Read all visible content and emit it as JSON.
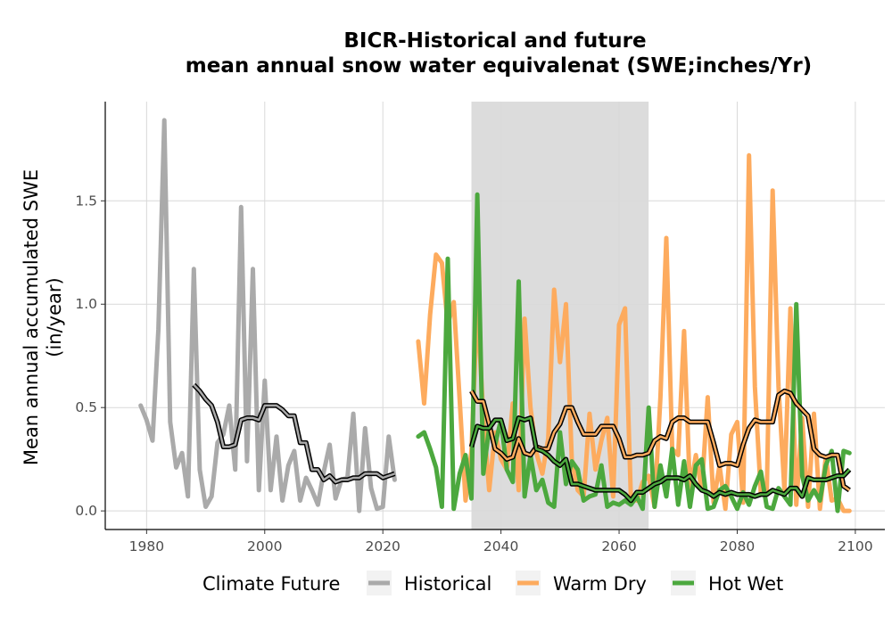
{
  "chart_data": {
    "type": "line",
    "title": "BICR-Historical and future",
    "subtitle": "mean annual snow water equivalenat (SWE;inches/Yr)",
    "xlabel": "",
    "ylabel_line1": "Mean annual accumulated SWE",
    "ylabel_line2": "(in/year)",
    "xlim": [
      1973,
      2105
    ],
    "ylim": [
      -0.09,
      1.98
    ],
    "x_ticks": [
      1980,
      2000,
      2020,
      2040,
      2060,
      2080,
      2100
    ],
    "y_ticks": [
      0.0,
      0.5,
      1.0,
      1.5
    ],
    "y_tick_labels": [
      "0.0",
      "0.5",
      "1.0",
      "1.5"
    ],
    "grid": true,
    "shaded_period": [
      2035,
      2065
    ],
    "shade_color": "#dcdcdc",
    "legend": {
      "position": "bottom",
      "title": "Climate Future",
      "entries": [
        {
          "label": "Historical",
          "color": "#aaaaaa"
        },
        {
          "label": "Warm Dry",
          "color": "#fdab5e"
        },
        {
          "label": "Hot Wet",
          "color": "#4ca83e"
        }
      ]
    },
    "series": [
      {
        "name": "Historical",
        "color": "#aaaaaa",
        "x": [
          1979,
          1980,
          1981,
          1982,
          1983,
          1984,
          1985,
          1986,
          1987,
          1988,
          1989,
          1990,
          1991,
          1992,
          1993,
          1994,
          1995,
          1996,
          1997,
          1998,
          1999,
          2000,
          2001,
          2002,
          2003,
          2004,
          2005,
          2006,
          2007,
          2008,
          2009,
          2010,
          2011,
          2012,
          2013,
          2014,
          2015,
          2016,
          2017,
          2018,
          2019,
          2020,
          2021,
          2022
        ],
        "values": [
          0.51,
          0.44,
          0.34,
          0.88,
          1.89,
          0.43,
          0.21,
          0.28,
          0.07,
          1.17,
          0.2,
          0.02,
          0.07,
          0.33,
          0.37,
          0.51,
          0.2,
          1.47,
          0.24,
          1.17,
          0.1,
          0.63,
          0.1,
          0.36,
          0.05,
          0.22,
          0.29,
          0.05,
          0.16,
          0.1,
          0.03,
          0.19,
          0.32,
          0.06,
          0.15,
          0.16,
          0.47,
          0.0,
          0.4,
          0.11,
          0.01,
          0.02,
          0.36,
          0.15
        ],
        "moving_average": {
          "color": "#000000",
          "x": [
            1988,
            1989,
            1990,
            1991,
            1992,
            1993,
            1994,
            1995,
            1996,
            1997,
            1998,
            1999,
            2000,
            2001,
            2002,
            2003,
            2004,
            2005,
            2006,
            2007,
            2008,
            2009,
            2010,
            2011,
            2012,
            2013,
            2014,
            2015,
            2016,
            2017,
            2018,
            2019,
            2020,
            2021,
            2022
          ],
          "values": [
            0.61,
            0.58,
            0.54,
            0.51,
            0.43,
            0.31,
            0.31,
            0.32,
            0.44,
            0.45,
            0.45,
            0.44,
            0.51,
            0.51,
            0.51,
            0.49,
            0.46,
            0.46,
            0.33,
            0.33,
            0.2,
            0.2,
            0.15,
            0.17,
            0.14,
            0.15,
            0.15,
            0.16,
            0.16,
            0.18,
            0.18,
            0.18,
            0.16,
            0.17,
            0.18
          ]
        }
      },
      {
        "name": "Warm Dry",
        "color": "#fdab5e",
        "x": [
          2026,
          2027,
          2028,
          2029,
          2030,
          2031,
          2032,
          2033,
          2034,
          2035,
          2036,
          2037,
          2038,
          2039,
          2040,
          2041,
          2042,
          2043,
          2044,
          2045,
          2046,
          2047,
          2048,
          2049,
          2050,
          2051,
          2052,
          2053,
          2054,
          2055,
          2056,
          2057,
          2058,
          2059,
          2060,
          2061,
          2062,
          2063,
          2064,
          2065,
          2066,
          2067,
          2068,
          2069,
          2070,
          2071,
          2072,
          2073,
          2074,
          2075,
          2076,
          2077,
          2078,
          2079,
          2080,
          2081,
          2082,
          2083,
          2084,
          2085,
          2086,
          2087,
          2088,
          2089,
          2090,
          2091,
          2092,
          2093,
          2094,
          2095,
          2096,
          2097,
          2098,
          2099
        ],
        "values": [
          0.82,
          0.52,
          0.95,
          1.24,
          1.2,
          0.9,
          1.01,
          0.54,
          0.05,
          0.29,
          1.0,
          0.46,
          0.1,
          0.38,
          0.25,
          0.2,
          0.52,
          0.1,
          0.93,
          0.5,
          0.28,
          0.18,
          0.35,
          1.07,
          0.72,
          1.0,
          0.24,
          0.1,
          0.07,
          0.47,
          0.2,
          0.34,
          0.45,
          0.07,
          0.9,
          0.98,
          0.06,
          0.05,
          0.14,
          0.17,
          0.02,
          0.55,
          1.32,
          0.3,
          0.27,
          0.87,
          0.1,
          0.27,
          0.1,
          0.55,
          0.04,
          0.22,
          0.01,
          0.37,
          0.43,
          0.04,
          1.72,
          0.6,
          0.08,
          0.08,
          1.55,
          0.6,
          0.1,
          0.98,
          0.03,
          0.45,
          0.02,
          0.47,
          0.01,
          0.26,
          0.05,
          0.06,
          0.0,
          0.0
        ],
        "moving_average": {
          "color": "#000000",
          "x": [
            2035,
            2036,
            2037,
            2038,
            2039,
            2040,
            2041,
            2042,
            2043,
            2044,
            2045,
            2046,
            2047,
            2048,
            2049,
            2050,
            2051,
            2052,
            2053,
            2054,
            2055,
            2056,
            2057,
            2058,
            2059,
            2060,
            2061,
            2062,
            2063,
            2064,
            2065,
            2066,
            2067,
            2068,
            2069,
            2070,
            2071,
            2072,
            2073,
            2074,
            2075,
            2076,
            2077,
            2078,
            2079,
            2080,
            2081,
            2082,
            2083,
            2084,
            2085,
            2086,
            2087,
            2088,
            2089,
            2090,
            2091,
            2092,
            2093,
            2094,
            2095,
            2096,
            2097,
            2098,
            2099
          ],
          "values": [
            0.58,
            0.53,
            0.53,
            0.42,
            0.3,
            0.28,
            0.25,
            0.26,
            0.35,
            0.28,
            0.27,
            0.31,
            0.3,
            0.3,
            0.38,
            0.42,
            0.5,
            0.5,
            0.43,
            0.37,
            0.37,
            0.37,
            0.41,
            0.41,
            0.41,
            0.35,
            0.26,
            0.26,
            0.27,
            0.27,
            0.28,
            0.34,
            0.36,
            0.35,
            0.43,
            0.45,
            0.45,
            0.43,
            0.43,
            0.43,
            0.43,
            0.33,
            0.22,
            0.23,
            0.23,
            0.22,
            0.32,
            0.4,
            0.44,
            0.43,
            0.43,
            0.43,
            0.56,
            0.58,
            0.57,
            0.52,
            0.49,
            0.46,
            0.3,
            0.27,
            0.26,
            0.27,
            0.27,
            0.12,
            0.1
          ]
        }
      },
      {
        "name": "Hot Wet",
        "color": "#4ca83e",
        "x": [
          2026,
          2027,
          2028,
          2029,
          2030,
          2031,
          2032,
          2033,
          2034,
          2035,
          2036,
          2037,
          2038,
          2039,
          2040,
          2041,
          2042,
          2043,
          2044,
          2045,
          2046,
          2047,
          2048,
          2049,
          2050,
          2051,
          2052,
          2053,
          2054,
          2055,
          2056,
          2057,
          2058,
          2059,
          2060,
          2061,
          2062,
          2063,
          2064,
          2065,
          2066,
          2067,
          2068,
          2069,
          2070,
          2071,
          2072,
          2073,
          2074,
          2075,
          2076,
          2077,
          2078,
          2079,
          2080,
          2081,
          2082,
          2083,
          2084,
          2085,
          2086,
          2087,
          2088,
          2089,
          2090,
          2091,
          2092,
          2093,
          2094,
          2095,
          2096,
          2097,
          2098,
          2099
        ],
        "values": [
          0.36,
          0.38,
          0.3,
          0.21,
          0.02,
          1.22,
          0.01,
          0.18,
          0.27,
          0.06,
          1.53,
          0.18,
          0.4,
          0.32,
          0.44,
          0.2,
          0.14,
          1.11,
          0.07,
          0.27,
          0.1,
          0.15,
          0.04,
          0.02,
          0.38,
          0.13,
          0.24,
          0.2,
          0.05,
          0.07,
          0.08,
          0.22,
          0.02,
          0.04,
          0.03,
          0.05,
          0.03,
          0.07,
          0.01,
          0.5,
          0.02,
          0.22,
          0.07,
          0.3,
          0.03,
          0.24,
          0.02,
          0.22,
          0.25,
          0.01,
          0.02,
          0.1,
          0.12,
          0.07,
          0.01,
          0.09,
          0.03,
          0.12,
          0.19,
          0.02,
          0.01,
          0.11,
          0.07,
          0.03,
          1.0,
          0.17,
          0.05,
          0.1,
          0.05,
          0.22,
          0.29,
          0.0,
          0.29,
          0.28
        ],
        "moving_average": {
          "color": "#000000",
          "x": [
            2035,
            2036,
            2037,
            2038,
            2039,
            2040,
            2041,
            2042,
            2043,
            2044,
            2045,
            2046,
            2047,
            2048,
            2049,
            2050,
            2051,
            2052,
            2053,
            2054,
            2055,
            2056,
            2057,
            2058,
            2059,
            2060,
            2061,
            2062,
            2063,
            2064,
            2065,
            2066,
            2067,
            2068,
            2069,
            2070,
            2071,
            2072,
            2073,
            2074,
            2075,
            2076,
            2077,
            2078,
            2079,
            2080,
            2081,
            2082,
            2083,
            2084,
            2085,
            2086,
            2087,
            2088,
            2089,
            2090,
            2091,
            2092,
            2093,
            2094,
            2095,
            2096,
            2097,
            2098,
            2099
          ],
          "values": [
            0.31,
            0.41,
            0.4,
            0.4,
            0.44,
            0.44,
            0.34,
            0.35,
            0.45,
            0.44,
            0.45,
            0.3,
            0.29,
            0.27,
            0.24,
            0.22,
            0.25,
            0.13,
            0.13,
            0.12,
            0.11,
            0.1,
            0.1,
            0.1,
            0.1,
            0.1,
            0.08,
            0.05,
            0.09,
            0.09,
            0.11,
            0.13,
            0.14,
            0.16,
            0.16,
            0.16,
            0.15,
            0.17,
            0.13,
            0.1,
            0.09,
            0.07,
            0.09,
            0.08,
            0.09,
            0.08,
            0.08,
            0.08,
            0.07,
            0.08,
            0.08,
            0.1,
            0.09,
            0.08,
            0.11,
            0.11,
            0.07,
            0.16,
            0.15,
            0.15,
            0.15,
            0.16,
            0.17,
            0.17,
            0.2
          ]
        }
      }
    ]
  }
}
